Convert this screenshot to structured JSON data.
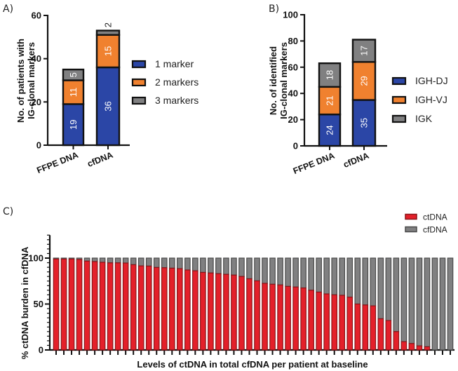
{
  "chart_data": [
    {
      "id": "A",
      "panel_label": "A)",
      "type": "bar",
      "stacked": true,
      "title": "",
      "ylabel_lines": [
        "No. of patients with",
        "IG-clonal markers"
      ],
      "xlabel": "",
      "categories": [
        "FFPE DNA",
        "cfDNA"
      ],
      "ylim": [
        0,
        60
      ],
      "yticks": [
        0,
        20,
        40,
        60
      ],
      "grid": false,
      "legend_position": "right",
      "series": [
        {
          "name": "1 marker",
          "color": "#2B46A6",
          "values": [
            19,
            36
          ],
          "labels": [
            "19",
            "36"
          ]
        },
        {
          "name": "2 markers",
          "color": "#F0812F",
          "values": [
            11,
            15
          ],
          "labels": [
            "11",
            "15"
          ]
        },
        {
          "name": "3 markers",
          "color": "#808081",
          "values": [
            5,
            2
          ],
          "labels": [
            "5",
            "2"
          ]
        }
      ]
    },
    {
      "id": "B",
      "panel_label": "B)",
      "type": "bar",
      "stacked": true,
      "title": "",
      "ylabel_lines": [
        "No. of identified",
        "IG-clonal markers"
      ],
      "xlabel": "",
      "categories": [
        "FFPE DNA",
        "cfDNA"
      ],
      "ylim": [
        0,
        100
      ],
      "yticks": [
        0,
        20,
        40,
        60,
        80,
        100
      ],
      "grid": false,
      "legend_position": "right",
      "series": [
        {
          "name": "IGH-DJ",
          "color": "#2B46A6",
          "values": [
            24,
            35
          ],
          "labels": [
            "24",
            "35"
          ]
        },
        {
          "name": "IGH-VJ",
          "color": "#F0812F",
          "values": [
            21,
            29
          ],
          "labels": [
            "21",
            "29"
          ]
        },
        {
          "name": "IGK",
          "color": "#808081",
          "values": [
            18,
            17
          ],
          "labels": [
            "18",
            "17"
          ]
        }
      ]
    },
    {
      "id": "C",
      "panel_label": "C)",
      "type": "bar",
      "stacked": true,
      "title": "",
      "ylabel": "% ctDNA burden in cfDNA",
      "xlabel": "Levels of ctDNA in total cfDNA per patient at baseline",
      "ylim": [
        0,
        125
      ],
      "yticks": [
        0,
        50,
        100
      ],
      "minor_tick_step": 5,
      "grid": false,
      "legend_position": "top-right",
      "n_patients": 52,
      "series": [
        {
          "name": "ctDNA",
          "color": "#E4202A",
          "values": [
            99,
            99,
            99,
            98.5,
            96.7,
            96.2,
            95.4,
            94.8,
            94.8,
            94.6,
            92.8,
            91.5,
            91.3,
            89.8,
            89.5,
            89,
            88.5,
            87,
            86.2,
            84.4,
            83.8,
            83,
            82.3,
            81.5,
            80,
            77.5,
            75.2,
            72.5,
            71.5,
            70.8,
            69.2,
            68.5,
            67.5,
            65,
            63,
            61,
            60,
            59.5,
            57.5,
            50,
            49,
            48,
            34,
            32,
            20,
            9,
            7,
            4.5,
            3.5,
            0,
            0,
            0
          ]
        },
        {
          "name": "cfDNA",
          "color": "#808081",
          "total": 100
        }
      ]
    }
  ]
}
